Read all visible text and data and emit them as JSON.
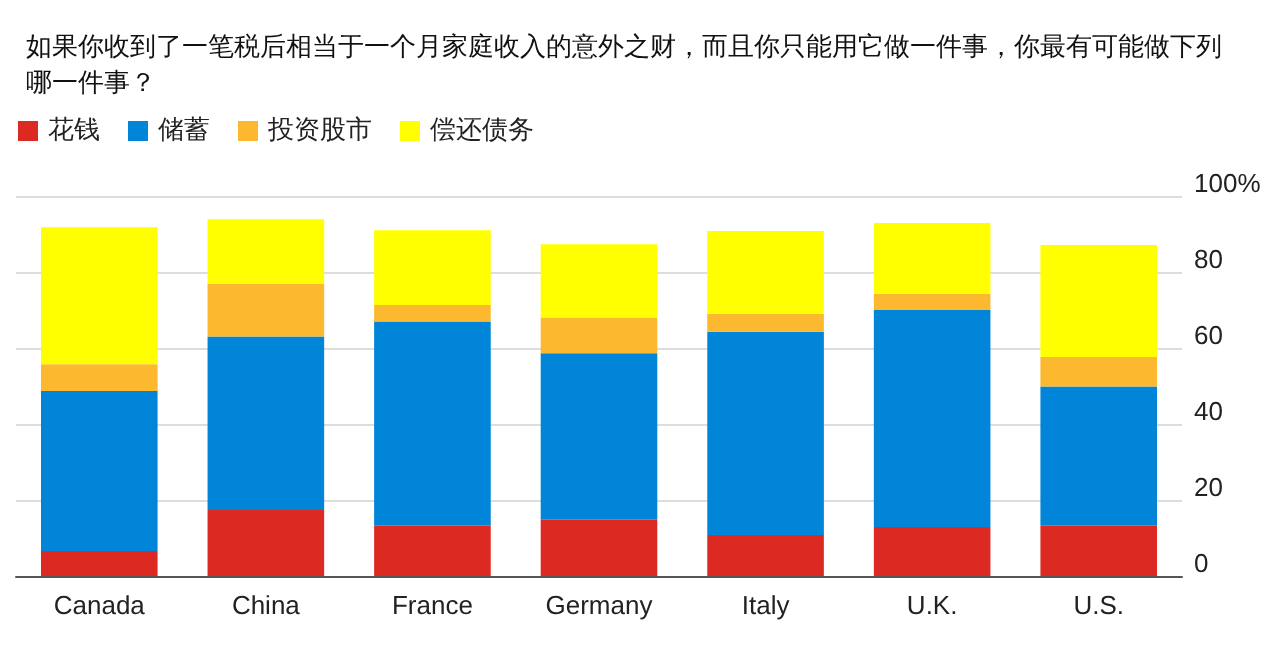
{
  "chart_data": {
    "type": "bar",
    "stacked": true,
    "title": "如果你收到了一笔税后相当于一个月家庭收入的意外之财，而且你只能用它做一件事，你最有可能做下列哪一件事？",
    "categories": [
      "Canada",
      "China",
      "France",
      "Germany",
      "Italy",
      "U.K.",
      "U.S."
    ],
    "series": [
      {
        "name": "花钱",
        "color": "#dc2a22",
        "values": [
          6.6,
          17.4,
          13.2,
          14.8,
          10.8,
          12.9,
          13.2
        ]
      },
      {
        "name": "储蓄",
        "color": "#0085d9",
        "values": [
          42.1,
          45.6,
          53.8,
          43.8,
          53.5,
          57.1,
          36.7
        ]
      },
      {
        "name": "投资股市",
        "color": "#fcb82e",
        "values": [
          7.0,
          13.9,
          4.3,
          9.4,
          4.7,
          4.3,
          7.7
        ]
      },
      {
        "name": "偿还债务",
        "color": "#ffff00",
        "values": [
          36.1,
          17.0,
          19.7,
          19.3,
          21.8,
          18.6,
          29.5
        ]
      }
    ],
    "ylim": [
      0,
      100
    ],
    "yticks": [
      0,
      20,
      40,
      60,
      80,
      {
        "value": 100,
        "label": "100%"
      }
    ],
    "grid": "y",
    "legend": "top left"
  }
}
